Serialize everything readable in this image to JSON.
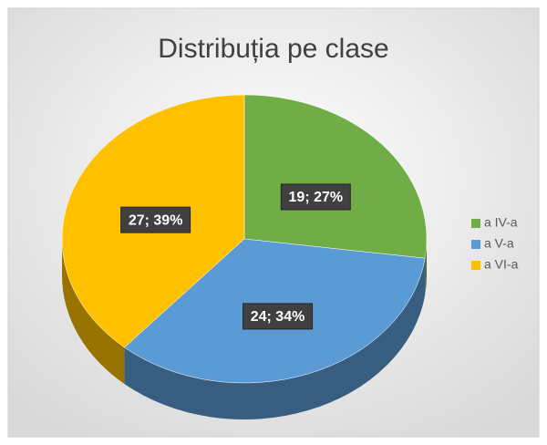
{
  "chart_data": {
    "type": "pie",
    "title": "Distribuția pe clase",
    "categories": [
      "a IV-a",
      "a V-a",
      "a VI-a"
    ],
    "values": [
      19,
      24,
      27
    ],
    "value_labels": [
      "19; 27%",
      "24; 34%",
      "27; 39%"
    ],
    "colors": [
      "#70ad47",
      "#5b9bd5",
      "#ffc000"
    ],
    "legend": "right"
  }
}
